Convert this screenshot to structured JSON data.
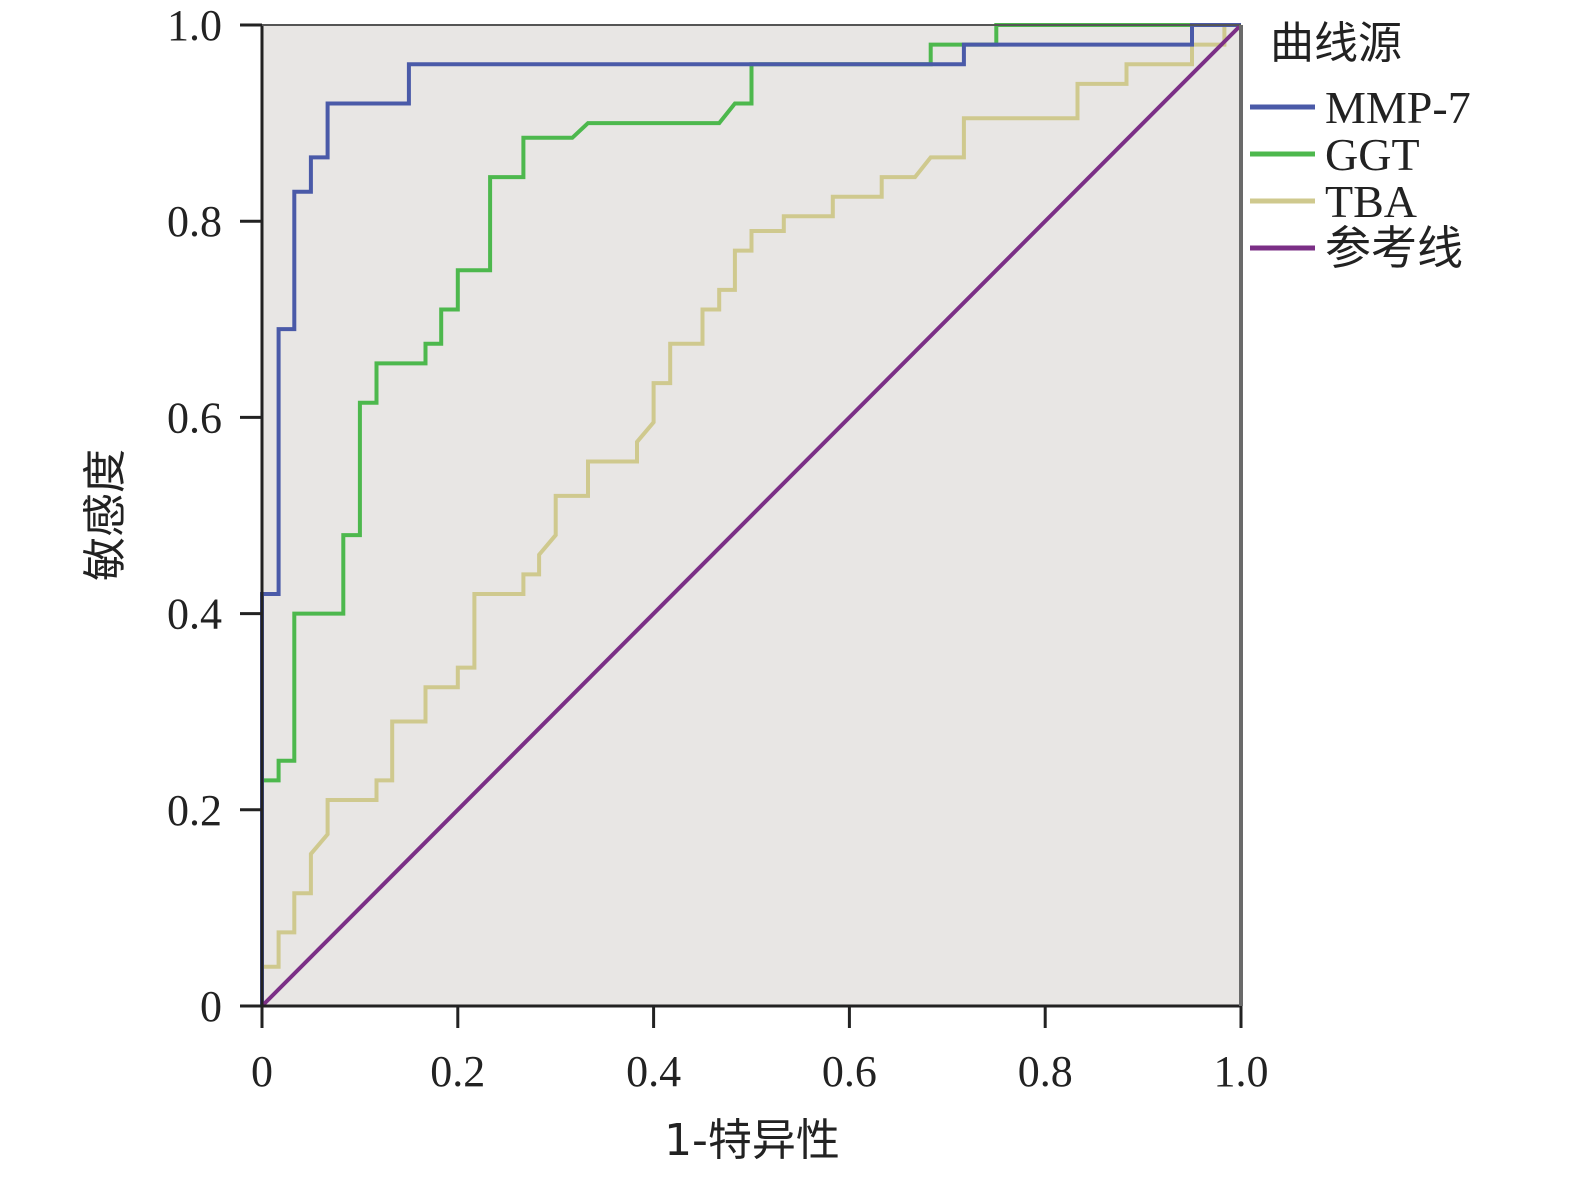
{
  "chart_data": {
    "type": "line",
    "xlabel": "1-特异性",
    "ylabel": "敏感度",
    "xlim": [
      0,
      1
    ],
    "ylim": [
      0,
      1
    ],
    "xticks": [
      "0",
      "0.2",
      "0.4",
      "0.6",
      "0.8",
      "1.0"
    ],
    "yticks": [
      "0",
      "0.2",
      "0.4",
      "0.6",
      "0.8",
      "1.0"
    ],
    "grid": false,
    "plot_background": "#e8e6e4",
    "legend": {
      "title": "曲线源",
      "position": "right"
    },
    "series": [
      {
        "name": "MMP-7",
        "color": "#4a5aa8",
        "step": true,
        "points": [
          [
            0,
            0
          ],
          [
            0,
            0.42
          ],
          [
            0.017,
            0.42
          ],
          [
            0.017,
            0.69
          ],
          [
            0.033,
            0.69
          ],
          [
            0.033,
            0.83
          ],
          [
            0.05,
            0.83
          ],
          [
            0.05,
            0.865
          ],
          [
            0.067,
            0.865
          ],
          [
            0.067,
            0.92
          ],
          [
            0.15,
            0.92
          ],
          [
            0.15,
            0.96
          ],
          [
            0.717,
            0.96
          ],
          [
            0.717,
            0.98
          ],
          [
            0.95,
            0.98
          ],
          [
            0.95,
            1.0
          ],
          [
            1,
            1
          ]
        ]
      },
      {
        "name": "GGT",
        "color": "#4db84d",
        "step": true,
        "points": [
          [
            0,
            0
          ],
          [
            0,
            0.23
          ],
          [
            0.017,
            0.23
          ],
          [
            0.017,
            0.25
          ],
          [
            0.033,
            0.25
          ],
          [
            0.033,
            0.4
          ],
          [
            0.083,
            0.4
          ],
          [
            0.083,
            0.48
          ],
          [
            0.1,
            0.48
          ],
          [
            0.1,
            0.615
          ],
          [
            0.117,
            0.615
          ],
          [
            0.117,
            0.655
          ],
          [
            0.167,
            0.655
          ],
          [
            0.167,
            0.675
          ],
          [
            0.183,
            0.675
          ],
          [
            0.183,
            0.71
          ],
          [
            0.2,
            0.71
          ],
          [
            0.2,
            0.75
          ],
          [
            0.233,
            0.75
          ],
          [
            0.233,
            0.845
          ],
          [
            0.267,
            0.845
          ],
          [
            0.267,
            0.885
          ],
          [
            0.317,
            0.885
          ],
          [
            0.333,
            0.9
          ],
          [
            0.467,
            0.9
          ],
          [
            0.483,
            0.92
          ],
          [
            0.5,
            0.92
          ],
          [
            0.5,
            0.96
          ],
          [
            0.683,
            0.96
          ],
          [
            0.683,
            0.98
          ],
          [
            0.75,
            0.98
          ],
          [
            0.75,
            1.0
          ],
          [
            1,
            1
          ]
        ]
      },
      {
        "name": "TBA",
        "color": "#cfc98e",
        "step": true,
        "points": [
          [
            0,
            0
          ],
          [
            0,
            0.04
          ],
          [
            0.017,
            0.04
          ],
          [
            0.017,
            0.075
          ],
          [
            0.033,
            0.075
          ],
          [
            0.033,
            0.115
          ],
          [
            0.05,
            0.115
          ],
          [
            0.05,
            0.155
          ],
          [
            0.067,
            0.175
          ],
          [
            0.067,
            0.21
          ],
          [
            0.117,
            0.21
          ],
          [
            0.117,
            0.23
          ],
          [
            0.133,
            0.23
          ],
          [
            0.133,
            0.29
          ],
          [
            0.167,
            0.29
          ],
          [
            0.167,
            0.325
          ],
          [
            0.2,
            0.325
          ],
          [
            0.2,
            0.345
          ],
          [
            0.217,
            0.345
          ],
          [
            0.217,
            0.42
          ],
          [
            0.267,
            0.42
          ],
          [
            0.267,
            0.44
          ],
          [
            0.283,
            0.44
          ],
          [
            0.283,
            0.46
          ],
          [
            0.3,
            0.48
          ],
          [
            0.3,
            0.52
          ],
          [
            0.333,
            0.52
          ],
          [
            0.333,
            0.555
          ],
          [
            0.383,
            0.555
          ],
          [
            0.383,
            0.575
          ],
          [
            0.4,
            0.595
          ],
          [
            0.4,
            0.635
          ],
          [
            0.417,
            0.635
          ],
          [
            0.417,
            0.675
          ],
          [
            0.45,
            0.675
          ],
          [
            0.45,
            0.71
          ],
          [
            0.467,
            0.71
          ],
          [
            0.467,
            0.73
          ],
          [
            0.483,
            0.73
          ],
          [
            0.483,
            0.77
          ],
          [
            0.5,
            0.77
          ],
          [
            0.5,
            0.79
          ],
          [
            0.533,
            0.79
          ],
          [
            0.533,
            0.805
          ],
          [
            0.583,
            0.805
          ],
          [
            0.583,
            0.825
          ],
          [
            0.633,
            0.825
          ],
          [
            0.633,
            0.845
          ],
          [
            0.667,
            0.845
          ],
          [
            0.683,
            0.865
          ],
          [
            0.717,
            0.865
          ],
          [
            0.717,
            0.905
          ],
          [
            0.833,
            0.905
          ],
          [
            0.833,
            0.94
          ],
          [
            0.883,
            0.94
          ],
          [
            0.883,
            0.96
          ],
          [
            0.95,
            0.96
          ],
          [
            0.95,
            0.98
          ],
          [
            0.983,
            0.98
          ],
          [
            0.983,
            1.0
          ],
          [
            1,
            1
          ]
        ]
      },
      {
        "name": "参考线",
        "color": "#7b2f86",
        "step": false,
        "points": [
          [
            0,
            0
          ],
          [
            1,
            1
          ]
        ]
      }
    ]
  }
}
